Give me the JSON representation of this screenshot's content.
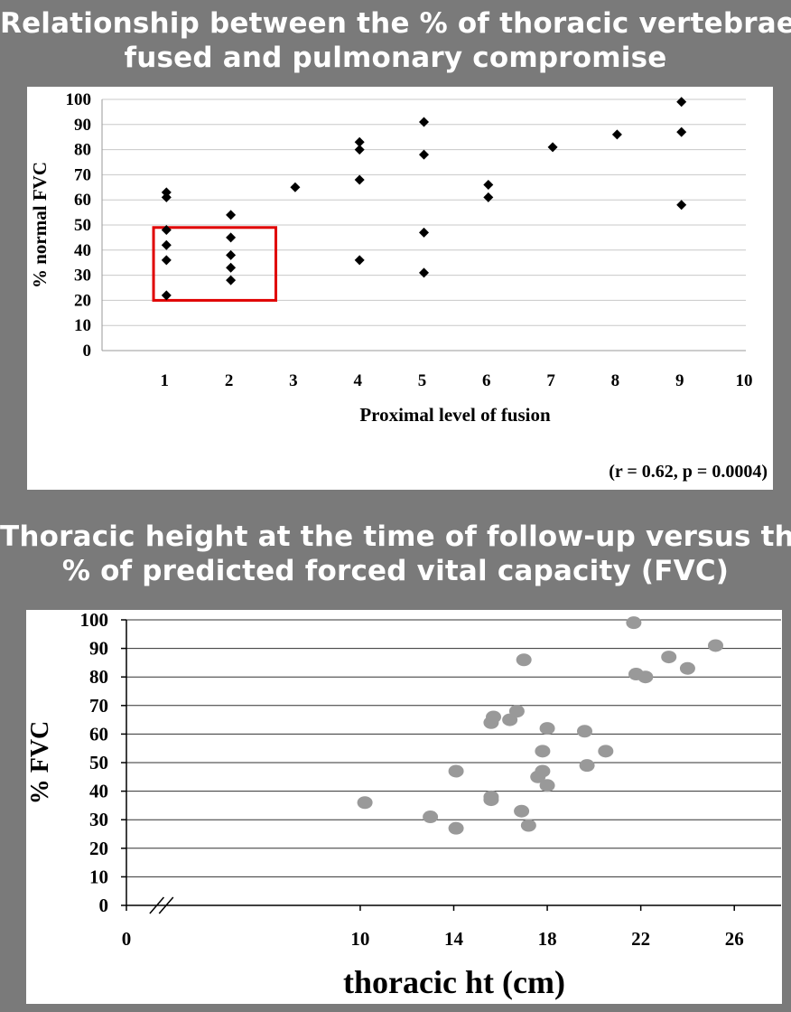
{
  "titles": {
    "top": [
      "Relationship between the % of thoracic vertebrae",
      "fused and pulmonary compromise"
    ],
    "bottom": [
      "Thoracic height at the time of follow-up versus the",
      "% of predicted forced vital capacity (FVC)"
    ]
  },
  "colors": {
    "background": "#7a7a7a",
    "panel": "#ffffff",
    "title_text": "#ffffff",
    "points_top": "#000000",
    "points_bottom": "#999999",
    "highlight_box": "#e00000",
    "grid": "#c8c8c8"
  },
  "chart_data": [
    {
      "type": "scatter",
      "title": "Relationship between the % of thoracic vertebrae fused and pulmonary compromise",
      "xlabel": "Proximal level of fusion",
      "ylabel": "% normal FVC",
      "xlim": [
        0,
        10
      ],
      "ylim": [
        0,
        100
      ],
      "xticks": [
        1,
        2,
        3,
        4,
        5,
        6,
        7,
        8,
        9,
        10
      ],
      "yticks": [
        0,
        10,
        20,
        30,
        40,
        50,
        60,
        70,
        80,
        90,
        100
      ],
      "grid": "horizontal",
      "marker": "diamond",
      "annotation": "(r = 0.62, p = 0.0004)",
      "highlight_box": {
        "x": [
          0.8,
          2.7
        ],
        "y": [
          20,
          49
        ]
      },
      "points": [
        [
          1,
          63
        ],
        [
          1,
          61
        ],
        [
          1,
          48
        ],
        [
          1,
          42
        ],
        [
          1,
          36
        ],
        [
          1,
          22
        ],
        [
          2,
          54
        ],
        [
          2,
          45
        ],
        [
          2,
          38
        ],
        [
          2,
          33
        ],
        [
          2,
          28
        ],
        [
          3,
          65
        ],
        [
          4,
          83
        ],
        [
          4,
          80
        ],
        [
          4,
          68
        ],
        [
          4,
          36
        ],
        [
          5,
          91
        ],
        [
          5,
          78
        ],
        [
          5,
          47
        ],
        [
          5,
          31
        ],
        [
          6,
          66
        ],
        [
          6,
          61
        ],
        [
          7,
          81
        ],
        [
          8,
          86
        ],
        [
          9,
          99
        ],
        [
          9,
          87
        ],
        [
          9,
          58
        ]
      ]
    },
    {
      "type": "scatter",
      "title": "Thoracic height at the time of follow-up versus the % of predicted forced vital capacity (FVC)",
      "xlabel": "thoracic ht (cm)",
      "ylabel": "% FVC",
      "xlim": [
        0,
        28
      ],
      "ylim": [
        0,
        100
      ],
      "xticks": [
        0,
        10,
        14,
        18,
        22,
        26
      ],
      "yticks": [
        0,
        10,
        20,
        30,
        40,
        50,
        60,
        70,
        80,
        90,
        100
      ],
      "grid": "horizontal",
      "axis_break": "x",
      "marker": "circle",
      "points": [
        [
          10.2,
          36
        ],
        [
          13.0,
          31
        ],
        [
          14.1,
          47
        ],
        [
          14.1,
          27
        ],
        [
          15.6,
          38
        ],
        [
          15.6,
          37
        ],
        [
          15.6,
          64
        ],
        [
          15.7,
          66
        ],
        [
          16.4,
          65
        ],
        [
          16.7,
          68
        ],
        [
          16.9,
          33
        ],
        [
          17.0,
          86
        ],
        [
          17.2,
          28
        ],
        [
          17.6,
          45
        ],
        [
          17.8,
          47
        ],
        [
          17.8,
          54
        ],
        [
          18.0,
          42
        ],
        [
          18.0,
          62
        ],
        [
          19.6,
          61
        ],
        [
          19.7,
          49
        ],
        [
          20.5,
          54
        ],
        [
          21.7,
          99
        ],
        [
          21.8,
          81
        ],
        [
          22.2,
          80
        ],
        [
          23.2,
          87
        ],
        [
          24.0,
          83
        ],
        [
          25.2,
          91
        ]
      ]
    }
  ]
}
